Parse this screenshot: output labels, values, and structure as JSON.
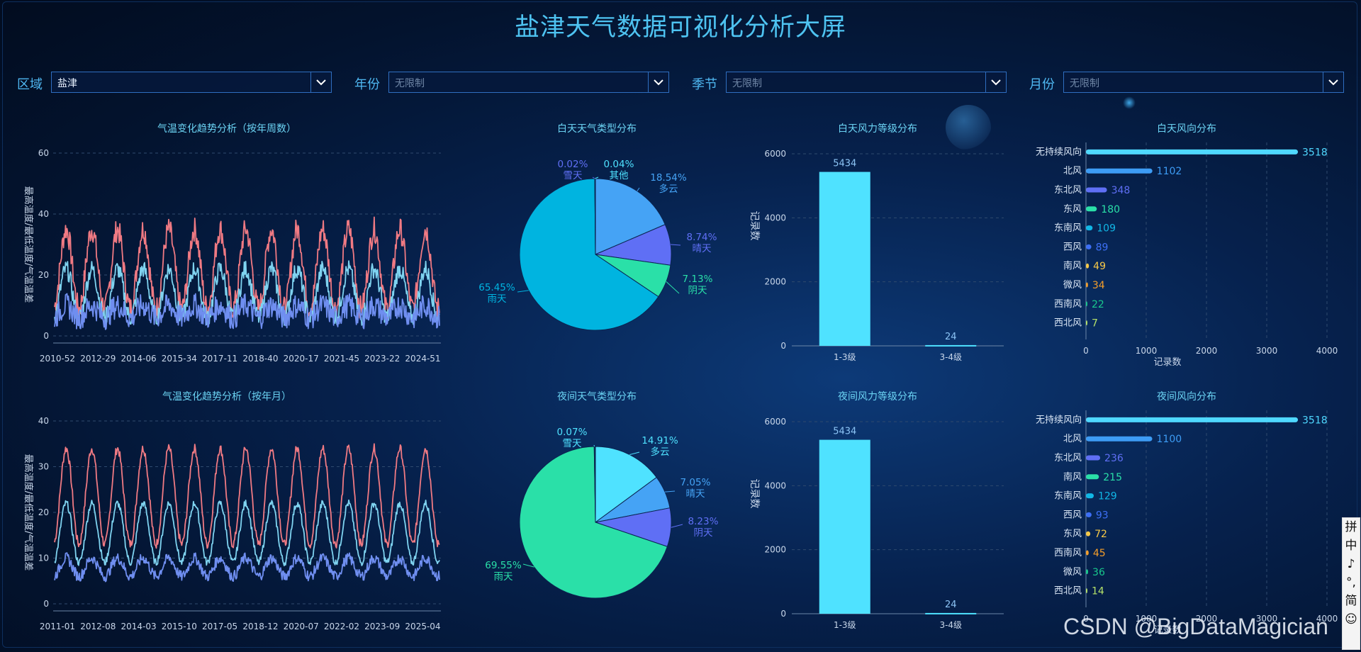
{
  "title": "盐津天气数据可视化分析大屏",
  "filters": [
    {
      "label": "区域",
      "value": "盐津",
      "placeholder": false
    },
    {
      "label": "年份",
      "value": "无限制",
      "placeholder": true
    },
    {
      "label": "季节",
      "value": "无限制",
      "placeholder": true
    },
    {
      "label": "月份",
      "value": "无限制",
      "placeholder": true
    }
  ],
  "colors": {
    "max": "#f07a83",
    "min": "#7fd3f0",
    "diff": "#6f8ef0",
    "bar": "#4fe2ff"
  },
  "chart_data": [
    {
      "id": "temp-week",
      "type": "line",
      "title": "气温变化趋势分析（按年周数）",
      "ylabel": "最高温度/最低温度/气温温差",
      "ylim": [
        0,
        60
      ],
      "yticks": [
        0,
        20,
        40,
        60
      ],
      "x_ticklabels": [
        "2010-52",
        "2012-29",
        "2014-06",
        "2015-34",
        "2017-11",
        "2018-40",
        "2020-17",
        "2021-45",
        "2023-22",
        "2024-51"
      ],
      "periods": 15,
      "series": [
        {
          "key": "max",
          "base": 22,
          "amp": 13,
          "noise": 4
        },
        {
          "key": "min",
          "base": 14,
          "amp": 8,
          "noise": 3
        },
        {
          "key": "diff",
          "base": 8,
          "amp": 2,
          "noise": 4
        }
      ]
    },
    {
      "id": "temp-month",
      "type": "line",
      "title": "气温变化趋势分析（按年月）",
      "ylabel": "最高温度/最低温度/气温温差",
      "ylim": [
        0,
        40
      ],
      "yticks": [
        0,
        10,
        20,
        30,
        40
      ],
      "x_ticklabels": [
        "2011-01",
        "2012-08",
        "2014-03",
        "2015-10",
        "2017-05",
        "2018-12",
        "2020-07",
        "2022-02",
        "2023-09",
        "2025-04"
      ],
      "periods": 15,
      "series": [
        {
          "key": "max",
          "base": 23.5,
          "amp": 10.5,
          "noise": 1
        },
        {
          "key": "min",
          "base": 15.5,
          "amp": 6.5,
          "noise": 0.8
        },
        {
          "key": "diff",
          "base": 8,
          "amp": 2,
          "noise": 1.2
        }
      ]
    },
    {
      "id": "pie-day",
      "type": "pie",
      "title": "白天天气类型分布",
      "slices": [
        {
          "name": "多云",
          "pct": 18.54,
          "label": "18.54%",
          "color": "#45a3f5"
        },
        {
          "name": "晴天",
          "pct": 8.74,
          "label": "8.74%",
          "color": "#5f6ff5"
        },
        {
          "name": "阴天",
          "pct": 7.13,
          "label": "7.13%",
          "color": "#2ae0a8"
        },
        {
          "name": "雨天",
          "pct": 65.45,
          "label": "65.45%",
          "color": "#00b4e0"
        },
        {
          "name": "雪天",
          "pct": 0.02,
          "label": "0.02%",
          "color": "#5f6ff5"
        },
        {
          "name": "其他",
          "pct": 0.04,
          "label": "0.04%",
          "color": "#4fe2ff"
        }
      ]
    },
    {
      "id": "pie-night",
      "type": "pie",
      "title": "夜间天气类型分布",
      "slices": [
        {
          "name": "多云",
          "pct": 14.91,
          "label": "14.91%",
          "color": "#4fe2ff"
        },
        {
          "name": "晴天",
          "pct": 7.05,
          "label": "7.05%",
          "color": "#45a3f5"
        },
        {
          "name": "阴天",
          "pct": 8.23,
          "label": "8.23%",
          "color": "#5f6ff5"
        },
        {
          "name": "雨天",
          "pct": 69.55,
          "label": "69.55%",
          "color": "#2ae0a8"
        },
        {
          "name": "雪天",
          "pct": 0.07,
          "label": "0.07%",
          "color": "#4fe2ff"
        }
      ]
    },
    {
      "id": "wind-day",
      "type": "bar",
      "title": "白天风力等级分布",
      "ylabel": "记录数",
      "ylim": [
        0,
        6000
      ],
      "yticks": [
        0,
        2000,
        4000,
        6000
      ],
      "categories": [
        "1-3级",
        "3-4级"
      ],
      "values": [
        5434,
        24
      ]
    },
    {
      "id": "wind-night",
      "type": "bar",
      "title": "夜间风力等级分布",
      "ylabel": "记录数",
      "ylim": [
        0,
        6000
      ],
      "yticks": [
        0,
        2000,
        4000,
        6000
      ],
      "categories": [
        "1-3级",
        "3-4级"
      ],
      "values": [
        5434,
        24
      ]
    },
    {
      "id": "dir-day",
      "type": "hbar",
      "title": "白天风向分布",
      "xlabel": "记录数",
      "xlim": [
        0,
        4000
      ],
      "xticks": [
        0,
        1000,
        2000,
        3000,
        4000
      ],
      "categories": [
        "无持续风向",
        "北风",
        "东北风",
        "东风",
        "东南风",
        "西风",
        "南风",
        "微风",
        "西南风",
        "西北风"
      ],
      "values": [
        3518,
        1102,
        348,
        180,
        109,
        89,
        49,
        34,
        22,
        7
      ],
      "colors": [
        "#4fd8ff",
        "#3d9cf5",
        "#5f6ff5",
        "#2ae0a8",
        "#11b7e6",
        "#3d6ff5",
        "#f7c948",
        "#f59e2a",
        "#19c98c",
        "#b5e26a"
      ]
    },
    {
      "id": "dir-night",
      "type": "hbar",
      "title": "夜间风向分布",
      "xlabel": "记录数",
      "xlim": [
        0,
        4000
      ],
      "xticks": [
        0,
        1000,
        2000,
        3000,
        4000
      ],
      "categories": [
        "无持续风向",
        "北风",
        "东北风",
        "南风",
        "东南风",
        "西风",
        "东风",
        "西南风",
        "微风",
        "西北风"
      ],
      "values": [
        3518,
        1100,
        236,
        215,
        129,
        93,
        72,
        45,
        36,
        14
      ],
      "colors": [
        "#4fd8ff",
        "#3d9cf5",
        "#5f6ff5",
        "#2ae0a8",
        "#11b7e6",
        "#3d6ff5",
        "#f7c948",
        "#f59e2a",
        "#19c98c",
        "#b5e26a"
      ]
    }
  ],
  "watermark": "CSDN @BigDataMagician",
  "ime": [
    "拼",
    "中",
    "♪",
    "°,",
    "简",
    "☺"
  ]
}
